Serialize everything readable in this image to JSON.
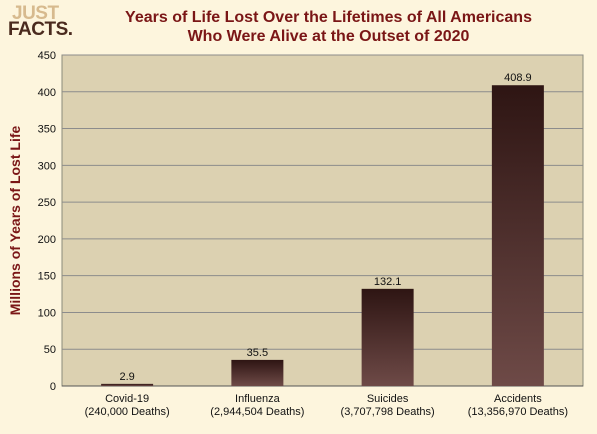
{
  "logo": {
    "line1": "JUST",
    "line2": "FACTS."
  },
  "chart_data": {
    "type": "bar",
    "title": "Years of Life Lost Over the Lifetimes of All Americans",
    "subtitle": "Who Were Alive at the Outset of 2020",
    "ylabel": "Millions of Years of Lost Life",
    "xlabel": "",
    "ylim": [
      0,
      450
    ],
    "yticks": [
      0,
      50,
      100,
      150,
      200,
      250,
      300,
      350,
      400,
      450
    ],
    "grid": true,
    "categories": [
      [
        "Covid-19",
        "(240,000 Deaths)"
      ],
      [
        "Influenza",
        "(2,944,504 Deaths)"
      ],
      [
        "Suicides",
        "(3,707,798 Deaths)"
      ],
      [
        "Accidents",
        "(13,356,970 Deaths)"
      ]
    ],
    "values": [
      2.9,
      35.5,
      132.1,
      408.9
    ],
    "value_labels": [
      "2.9",
      "35.5",
      "132.1",
      "408.9"
    ],
    "colors": {
      "bar_top": "#2e1513",
      "bar_bottom": "#6e4a47",
      "plot_bg": "#dcd1b1",
      "grid": "#8c8c8c",
      "title": "#7a1616"
    }
  }
}
